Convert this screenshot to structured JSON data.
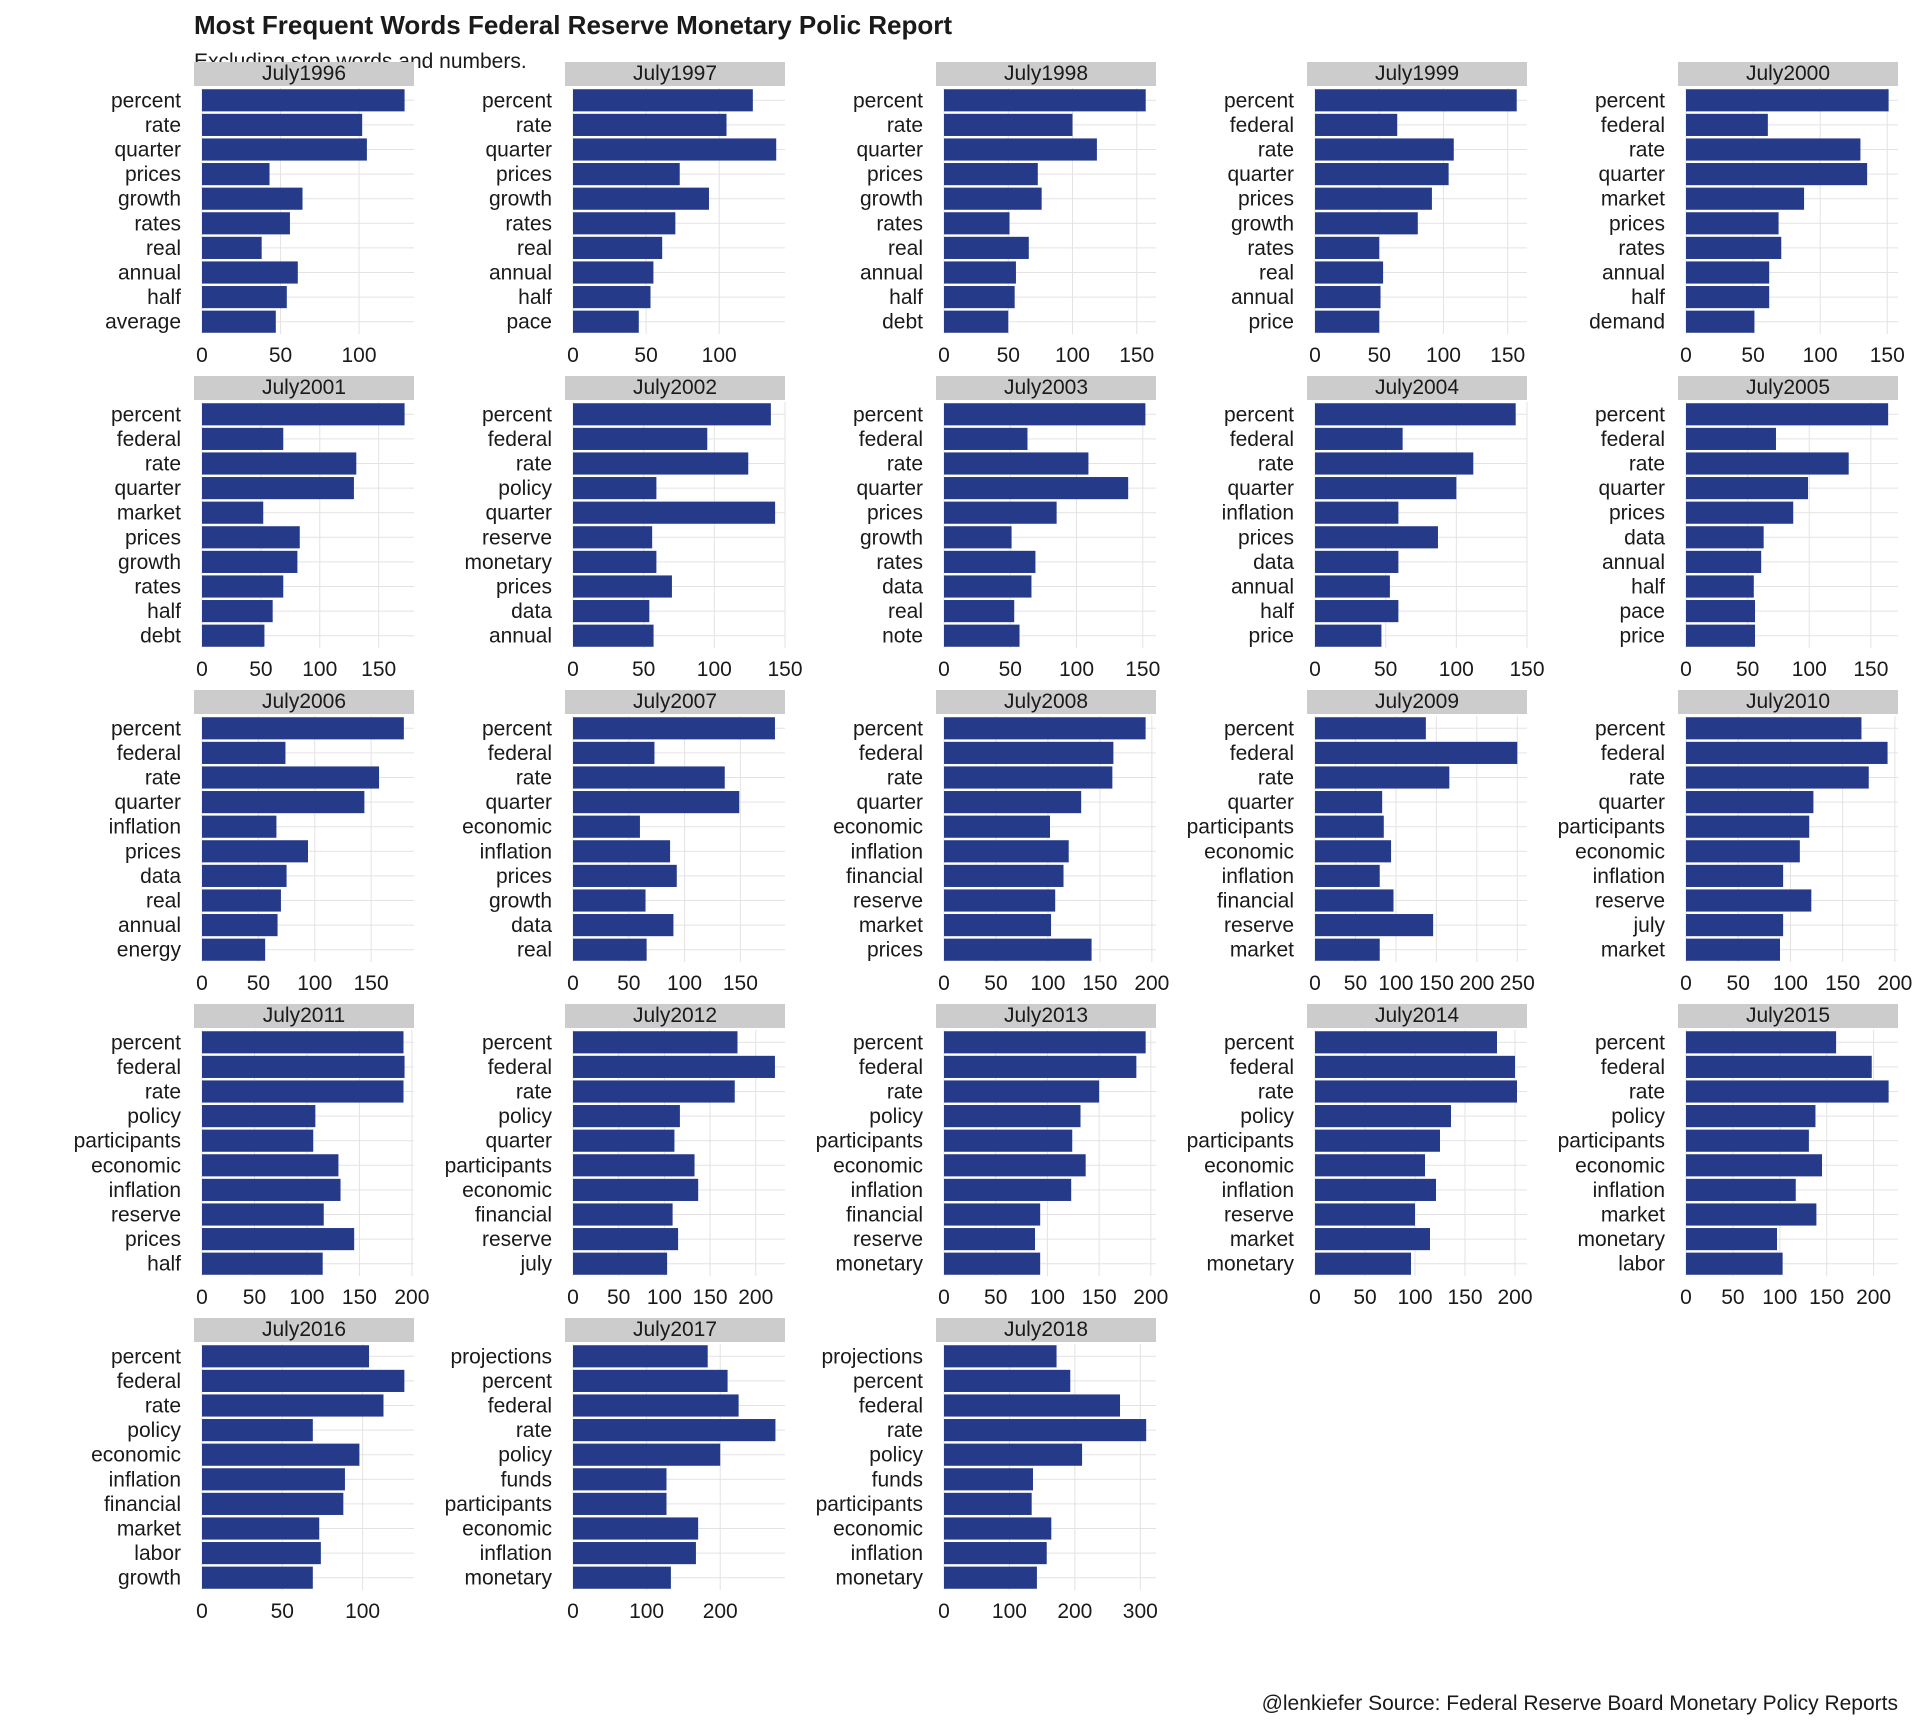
{
  "header": {
    "title": "Most Frequent Words Federal Reserve Monetary Polic Report",
    "subtitle": "Excluding stop words and numbers."
  },
  "footer": {
    "caption": "@lenkiefer Source: Federal Reserve Board Monetary Policy Reports"
  },
  "colors": {
    "bar": "#253b8a",
    "strip": "#cccccc",
    "grid": "#e3e3e3",
    "text": "#1a1a1a"
  },
  "chart_data": [
    {
      "type": "bar",
      "orientation": "horizontal",
      "panel": "July1996",
      "categories": [
        "percent",
        "rate",
        "quarter",
        "prices",
        "growth",
        "rates",
        "real",
        "annual",
        "half",
        "average"
      ],
      "values": [
        129,
        102,
        105,
        43,
        64,
        56,
        38,
        61,
        54,
        47
      ],
      "xlim": [
        0,
        135
      ],
      "xticks": [
        0,
        50,
        100
      ]
    },
    {
      "type": "bar",
      "orientation": "horizontal",
      "panel": "July1997",
      "categories": [
        "percent",
        "rate",
        "quarter",
        "prices",
        "growth",
        "rates",
        "real",
        "annual",
        "half",
        "pace"
      ],
      "values": [
        123,
        105,
        139,
        73,
        93,
        70,
        61,
        55,
        53,
        45
      ],
      "xlim": [
        0,
        145
      ],
      "xticks": [
        0,
        50,
        100
      ]
    },
    {
      "type": "bar",
      "orientation": "horizontal",
      "panel": "July1998",
      "categories": [
        "percent",
        "rate",
        "quarter",
        "prices",
        "growth",
        "rates",
        "real",
        "annual",
        "half",
        "debt"
      ],
      "values": [
        157,
        100,
        119,
        73,
        76,
        51,
        66,
        56,
        55,
        50
      ],
      "xlim": [
        0,
        165
      ],
      "xticks": [
        0,
        50,
        100,
        150
      ]
    },
    {
      "type": "bar",
      "orientation": "horizontal",
      "panel": "July1999",
      "categories": [
        "percent",
        "federal",
        "rate",
        "quarter",
        "prices",
        "growth",
        "rates",
        "real",
        "annual",
        "price"
      ],
      "values": [
        157,
        64,
        108,
        104,
        91,
        80,
        50,
        53,
        51,
        50
      ],
      "xlim": [
        0,
        165
      ],
      "xticks": [
        0,
        50,
        100,
        150
      ]
    },
    {
      "type": "bar",
      "orientation": "horizontal",
      "panel": "July2000",
      "categories": [
        "percent",
        "federal",
        "rate",
        "quarter",
        "market",
        "prices",
        "rates",
        "annual",
        "half",
        "demand"
      ],
      "values": [
        151,
        61,
        130,
        135,
        88,
        69,
        71,
        62,
        62,
        51
      ],
      "xlim": [
        0,
        158
      ],
      "xticks": [
        0,
        50,
        100,
        150
      ]
    },
    {
      "type": "bar",
      "orientation": "horizontal",
      "panel": "July2001",
      "categories": [
        "percent",
        "federal",
        "rate",
        "quarter",
        "market",
        "prices",
        "growth",
        "rates",
        "half",
        "debt"
      ],
      "values": [
        172,
        69,
        131,
        129,
        52,
        83,
        81,
        69,
        60,
        53
      ],
      "xlim": [
        0,
        180
      ],
      "xticks": [
        0,
        50,
        100,
        150
      ]
    },
    {
      "type": "bar",
      "orientation": "horizontal",
      "panel": "July2002",
      "categories": [
        "percent",
        "federal",
        "rate",
        "policy",
        "quarter",
        "reserve",
        "monetary",
        "prices",
        "data",
        "annual"
      ],
      "values": [
        140,
        95,
        124,
        59,
        143,
        56,
        59,
        70,
        54,
        57
      ],
      "xlim": [
        0,
        150
      ],
      "xticks": [
        0,
        50,
        100,
        150
      ]
    },
    {
      "type": "bar",
      "orientation": "horizontal",
      "panel": "July2003",
      "categories": [
        "percent",
        "federal",
        "rate",
        "quarter",
        "prices",
        "growth",
        "rates",
        "data",
        "real",
        "note"
      ],
      "values": [
        152,
        63,
        109,
        139,
        85,
        51,
        69,
        66,
        53,
        57
      ],
      "xlim": [
        0,
        160
      ],
      "xticks": [
        0,
        50,
        100,
        150
      ]
    },
    {
      "type": "bar",
      "orientation": "horizontal",
      "panel": "July2004",
      "categories": [
        "percent",
        "federal",
        "rate",
        "quarter",
        "inflation",
        "prices",
        "data",
        "annual",
        "half",
        "price"
      ],
      "values": [
        142,
        62,
        112,
        100,
        59,
        87,
        59,
        53,
        59,
        47
      ],
      "xlim": [
        0,
        150
      ],
      "xticks": [
        0,
        50,
        100,
        150
      ]
    },
    {
      "type": "bar",
      "orientation": "horizontal",
      "panel": "July2005",
      "categories": [
        "percent",
        "federal",
        "rate",
        "quarter",
        "prices",
        "data",
        "annual",
        "half",
        "pace",
        "price"
      ],
      "values": [
        164,
        73,
        132,
        99,
        87,
        63,
        61,
        55,
        56,
        56
      ],
      "xlim": [
        0,
        172
      ],
      "xticks": [
        0,
        50,
        100,
        150
      ]
    },
    {
      "type": "bar",
      "orientation": "horizontal",
      "panel": "July2006",
      "categories": [
        "percent",
        "federal",
        "rate",
        "quarter",
        "inflation",
        "prices",
        "data",
        "real",
        "annual",
        "energy"
      ],
      "values": [
        179,
        74,
        157,
        144,
        66,
        94,
        75,
        70,
        67,
        56
      ],
      "xlim": [
        0,
        188
      ],
      "xticks": [
        0,
        50,
        100,
        150
      ]
    },
    {
      "type": "bar",
      "orientation": "horizontal",
      "panel": "July2007",
      "categories": [
        "percent",
        "federal",
        "rate",
        "quarter",
        "economic",
        "inflation",
        "prices",
        "growth",
        "data",
        "real"
      ],
      "values": [
        181,
        73,
        136,
        149,
        60,
        87,
        93,
        65,
        90,
        66
      ],
      "xlim": [
        0,
        190
      ],
      "xticks": [
        0,
        50,
        100,
        150
      ]
    },
    {
      "type": "bar",
      "orientation": "horizontal",
      "panel": "July2008",
      "categories": [
        "percent",
        "federal",
        "rate",
        "quarter",
        "economic",
        "inflation",
        "financial",
        "reserve",
        "market",
        "prices"
      ],
      "values": [
        194,
        163,
        162,
        132,
        102,
        120,
        115,
        107,
        103,
        142
      ],
      "xlim": [
        0,
        204
      ],
      "xticks": [
        0,
        50,
        100,
        150,
        200
      ]
    },
    {
      "type": "bar",
      "orientation": "horizontal",
      "panel": "July2009",
      "categories": [
        "percent",
        "federal",
        "rate",
        "quarter",
        "participants",
        "economic",
        "inflation",
        "financial",
        "reserve",
        "market"
      ],
      "values": [
        137,
        250,
        166,
        83,
        85,
        94,
        80,
        97,
        146,
        80
      ],
      "xlim": [
        0,
        262
      ],
      "xticks": [
        0,
        50,
        100,
        150,
        200,
        250
      ]
    },
    {
      "type": "bar",
      "orientation": "horizontal",
      "panel": "July2010",
      "categories": [
        "percent",
        "federal",
        "rate",
        "quarter",
        "participants",
        "economic",
        "inflation",
        "reserve",
        "july",
        "market"
      ],
      "values": [
        168,
        193,
        175,
        122,
        118,
        109,
        93,
        120,
        93,
        90
      ],
      "xlim": [
        0,
        203
      ],
      "xticks": [
        0,
        50,
        100,
        150,
        200
      ]
    },
    {
      "type": "bar",
      "orientation": "horizontal",
      "panel": "July2011",
      "categories": [
        "percent",
        "federal",
        "rate",
        "policy",
        "participants",
        "economic",
        "inflation",
        "reserve",
        "prices",
        "half"
      ],
      "values": [
        192,
        193,
        192,
        108,
        106,
        130,
        132,
        116,
        145,
        115
      ],
      "xlim": [
        0,
        202
      ],
      "xticks": [
        0,
        50,
        100,
        150,
        200
      ]
    },
    {
      "type": "bar",
      "orientation": "horizontal",
      "panel": "July2012",
      "categories": [
        "percent",
        "federal",
        "rate",
        "policy",
        "quarter",
        "participants",
        "economic",
        "financial",
        "reserve",
        "july"
      ],
      "values": [
        180,
        221,
        177,
        117,
        111,
        133,
        137,
        109,
        115,
        103
      ],
      "xlim": [
        0,
        232
      ],
      "xticks": [
        0,
        50,
        100,
        150,
        200
      ]
    },
    {
      "type": "bar",
      "orientation": "horizontal",
      "panel": "July2013",
      "categories": [
        "percent",
        "federal",
        "rate",
        "policy",
        "participants",
        "economic",
        "inflation",
        "financial",
        "reserve",
        "monetary"
      ],
      "values": [
        195,
        186,
        150,
        132,
        124,
        137,
        123,
        93,
        88,
        93
      ],
      "xlim": [
        0,
        205
      ],
      "xticks": [
        0,
        50,
        100,
        150,
        200
      ]
    },
    {
      "type": "bar",
      "orientation": "horizontal",
      "panel": "July2014",
      "categories": [
        "percent",
        "federal",
        "rate",
        "policy",
        "participants",
        "economic",
        "inflation",
        "reserve",
        "market",
        "monetary"
      ],
      "values": [
        182,
        200,
        202,
        136,
        125,
        110,
        121,
        100,
        115,
        96
      ],
      "xlim": [
        0,
        212
      ],
      "xticks": [
        0,
        50,
        100,
        150,
        200
      ]
    },
    {
      "type": "bar",
      "orientation": "horizontal",
      "panel": "July2015",
      "categories": [
        "percent",
        "federal",
        "rate",
        "policy",
        "participants",
        "economic",
        "inflation",
        "market",
        "monetary",
        "labor"
      ],
      "values": [
        160,
        198,
        216,
        138,
        131,
        145,
        117,
        139,
        97,
        103
      ],
      "xlim": [
        0,
        226
      ],
      "xticks": [
        0,
        50,
        100,
        150,
        200
      ]
    },
    {
      "type": "bar",
      "orientation": "horizontal",
      "panel": "July2016",
      "categories": [
        "percent",
        "federal",
        "rate",
        "policy",
        "economic",
        "inflation",
        "financial",
        "market",
        "labor",
        "growth"
      ],
      "values": [
        104,
        126,
        113,
        69,
        98,
        89,
        88,
        73,
        74,
        69
      ],
      "xlim": [
        0,
        132
      ],
      "xticks": [
        0,
        50,
        100
      ]
    },
    {
      "type": "bar",
      "orientation": "horizontal",
      "panel": "July2017",
      "categories": [
        "projections",
        "percent",
        "federal",
        "rate",
        "policy",
        "funds",
        "participants",
        "economic",
        "inflation",
        "monetary"
      ],
      "values": [
        183,
        210,
        225,
        275,
        200,
        127,
        127,
        170,
        167,
        133
      ],
      "xlim": [
        0,
        288
      ],
      "xticks": [
        0,
        100,
        200
      ]
    },
    {
      "type": "bar",
      "orientation": "horizontal",
      "panel": "July2018",
      "categories": [
        "projections",
        "percent",
        "federal",
        "rate",
        "policy",
        "funds",
        "participants",
        "economic",
        "inflation",
        "monetary"
      ],
      "values": [
        172,
        193,
        269,
        309,
        211,
        136,
        134,
        164,
        157,
        142
      ],
      "xlim": [
        0,
        324
      ],
      "xticks": [
        0,
        100,
        200,
        300
      ]
    }
  ]
}
